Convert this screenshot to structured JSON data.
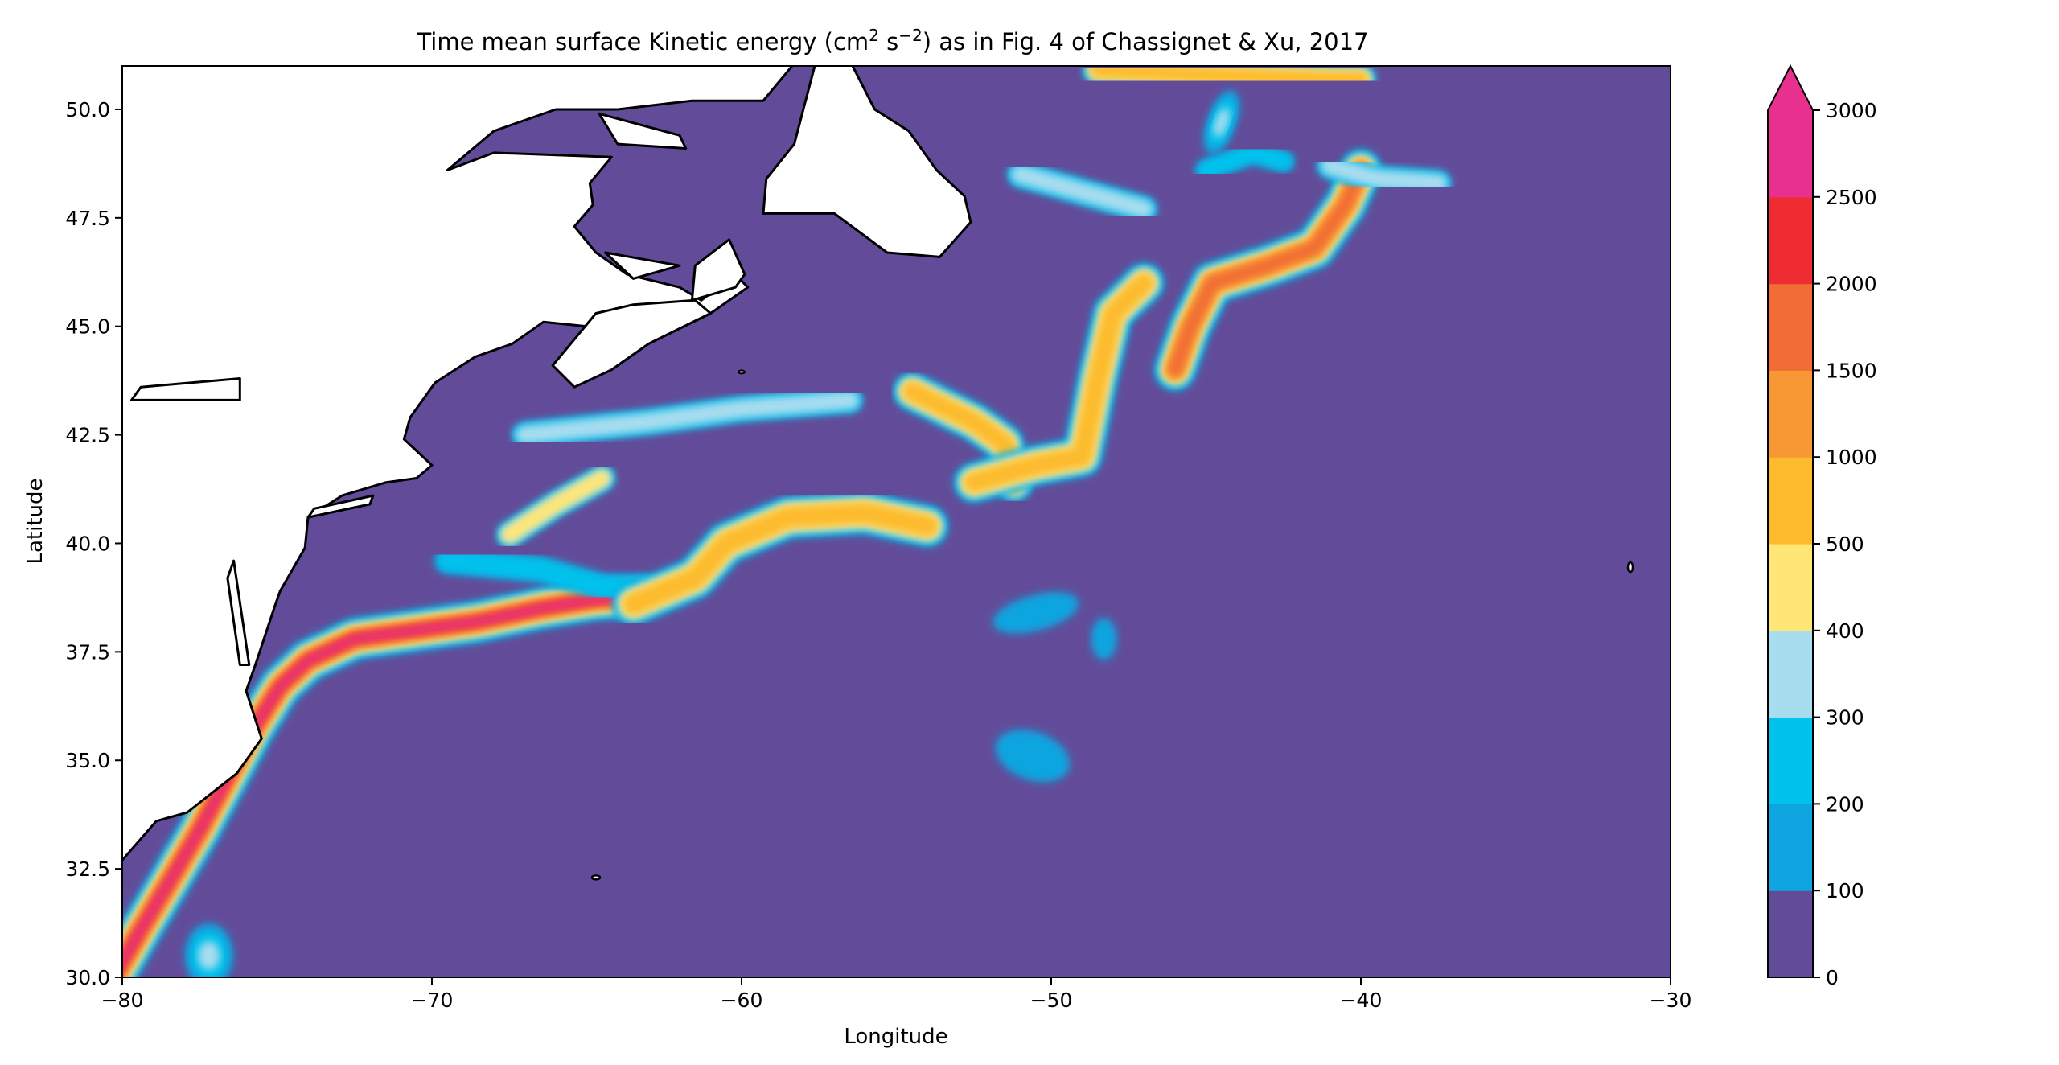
{
  "chart_data": {
    "type": "heatmap",
    "subtype": "filled-contour-map",
    "title": {
      "pre": "Time mean surface Kinetic energy (cm",
      "sup1": "2",
      "mid": " s",
      "sup2": "−2",
      "post": ") as in Fig. 4 of Chassignet & Xu, 2017"
    },
    "xlabel": "Longitude",
    "ylabel": "Latitude",
    "xlim": [
      -80,
      -30
    ],
    "ylim": [
      30,
      51
    ],
    "xticks": [
      -80,
      -70,
      -60,
      -50,
      -40,
      -30
    ],
    "xtick_labels": [
      "−80",
      "−70",
      "−60",
      "−50",
      "−40",
      "−30"
    ],
    "yticks": [
      30.0,
      32.5,
      35.0,
      37.5,
      40.0,
      42.5,
      45.0,
      47.5,
      50.0
    ],
    "ytick_labels": [
      "30.0",
      "32.5",
      "35.0",
      "37.5",
      "40.0",
      "42.5",
      "45.0",
      "47.5",
      "50.0"
    ],
    "colorbar": {
      "levels": [
        0,
        100,
        200,
        300,
        400,
        500,
        1000,
        1500,
        2000,
        2500,
        3000
      ],
      "tick_labels": [
        "0",
        "100",
        "200",
        "300",
        "400",
        "500",
        "1000",
        "1500",
        "2000",
        "2500",
        "3000"
      ],
      "colors": [
        "#624c99",
        "#0ea5e0",
        "#00c2ec",
        "#a8dcef",
        "#ffe676",
        "#fdbb2d",
        "#f89835",
        "#f26d36",
        "#ee2c31",
        "#e8318e"
      ],
      "extend": "max"
    },
    "grid": false,
    "features": {
      "land_color": "#ffffff",
      "ocean_background_level": "0-100",
      "gulf_stream_core_max": "> 3000 near 34°N–38°N, 74°W–64°W",
      "north_atlantic_current_max": "1500-2000 near 46.5°N, 42°W"
    }
  }
}
